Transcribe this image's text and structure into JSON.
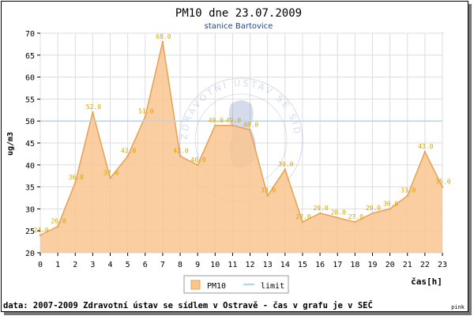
{
  "chart_data": {
    "type": "area",
    "title": "PM10 dne 23.07.2009",
    "subtitle": "stanice Bartovice",
    "xlabel": "čas[h]",
    "ylabel": "ug/m3",
    "x": [
      0,
      1,
      2,
      3,
      4,
      5,
      6,
      7,
      8,
      9,
      10,
      11,
      12,
      13,
      14,
      15,
      16,
      17,
      18,
      19,
      20,
      21,
      22,
      23
    ],
    "ylim": [
      20,
      70
    ],
    "yticks": [
      20,
      25,
      30,
      35,
      40,
      45,
      50,
      55,
      60,
      65,
      70
    ],
    "series": [
      {
        "name": "PM10",
        "values": [
          24,
          26,
          36,
          52,
          37,
          42,
          51,
          68,
          42,
          40,
          49,
          49,
          48,
          33,
          39,
          27,
          29,
          28,
          27,
          29,
          30,
          33,
          43,
          35
        ],
        "labels": [
          "24.0",
          "26.0",
          "36.0",
          "52.0",
          "37.0",
          "42.0",
          "51.0",
          "68.0",
          "42.0",
          "40.0",
          "49.0",
          "49.0",
          "48.0",
          "33.0",
          "39.0",
          "27.0",
          "29.0",
          "28.0",
          "27.0",
          "29.0",
          "30.0",
          "33.0",
          "43.0",
          "35.0"
        ],
        "color": "#f9c68f",
        "line_color": "#e8a052",
        "label_color": "#d9a400"
      },
      {
        "name": "limit",
        "value": 50,
        "color": "#a9d9ef"
      }
    ],
    "grid": true,
    "legend_position": "bottom-center",
    "watermark": "ZDRAVOTNÍ ÚSTAV SE SÍDLEM V OSTRAVĚ"
  },
  "footer": {
    "source": "data: 2007-2009 Zdravotní ústav se sídlem v Ostravě - čas v grafu je v SEČ",
    "tag": "pink"
  }
}
